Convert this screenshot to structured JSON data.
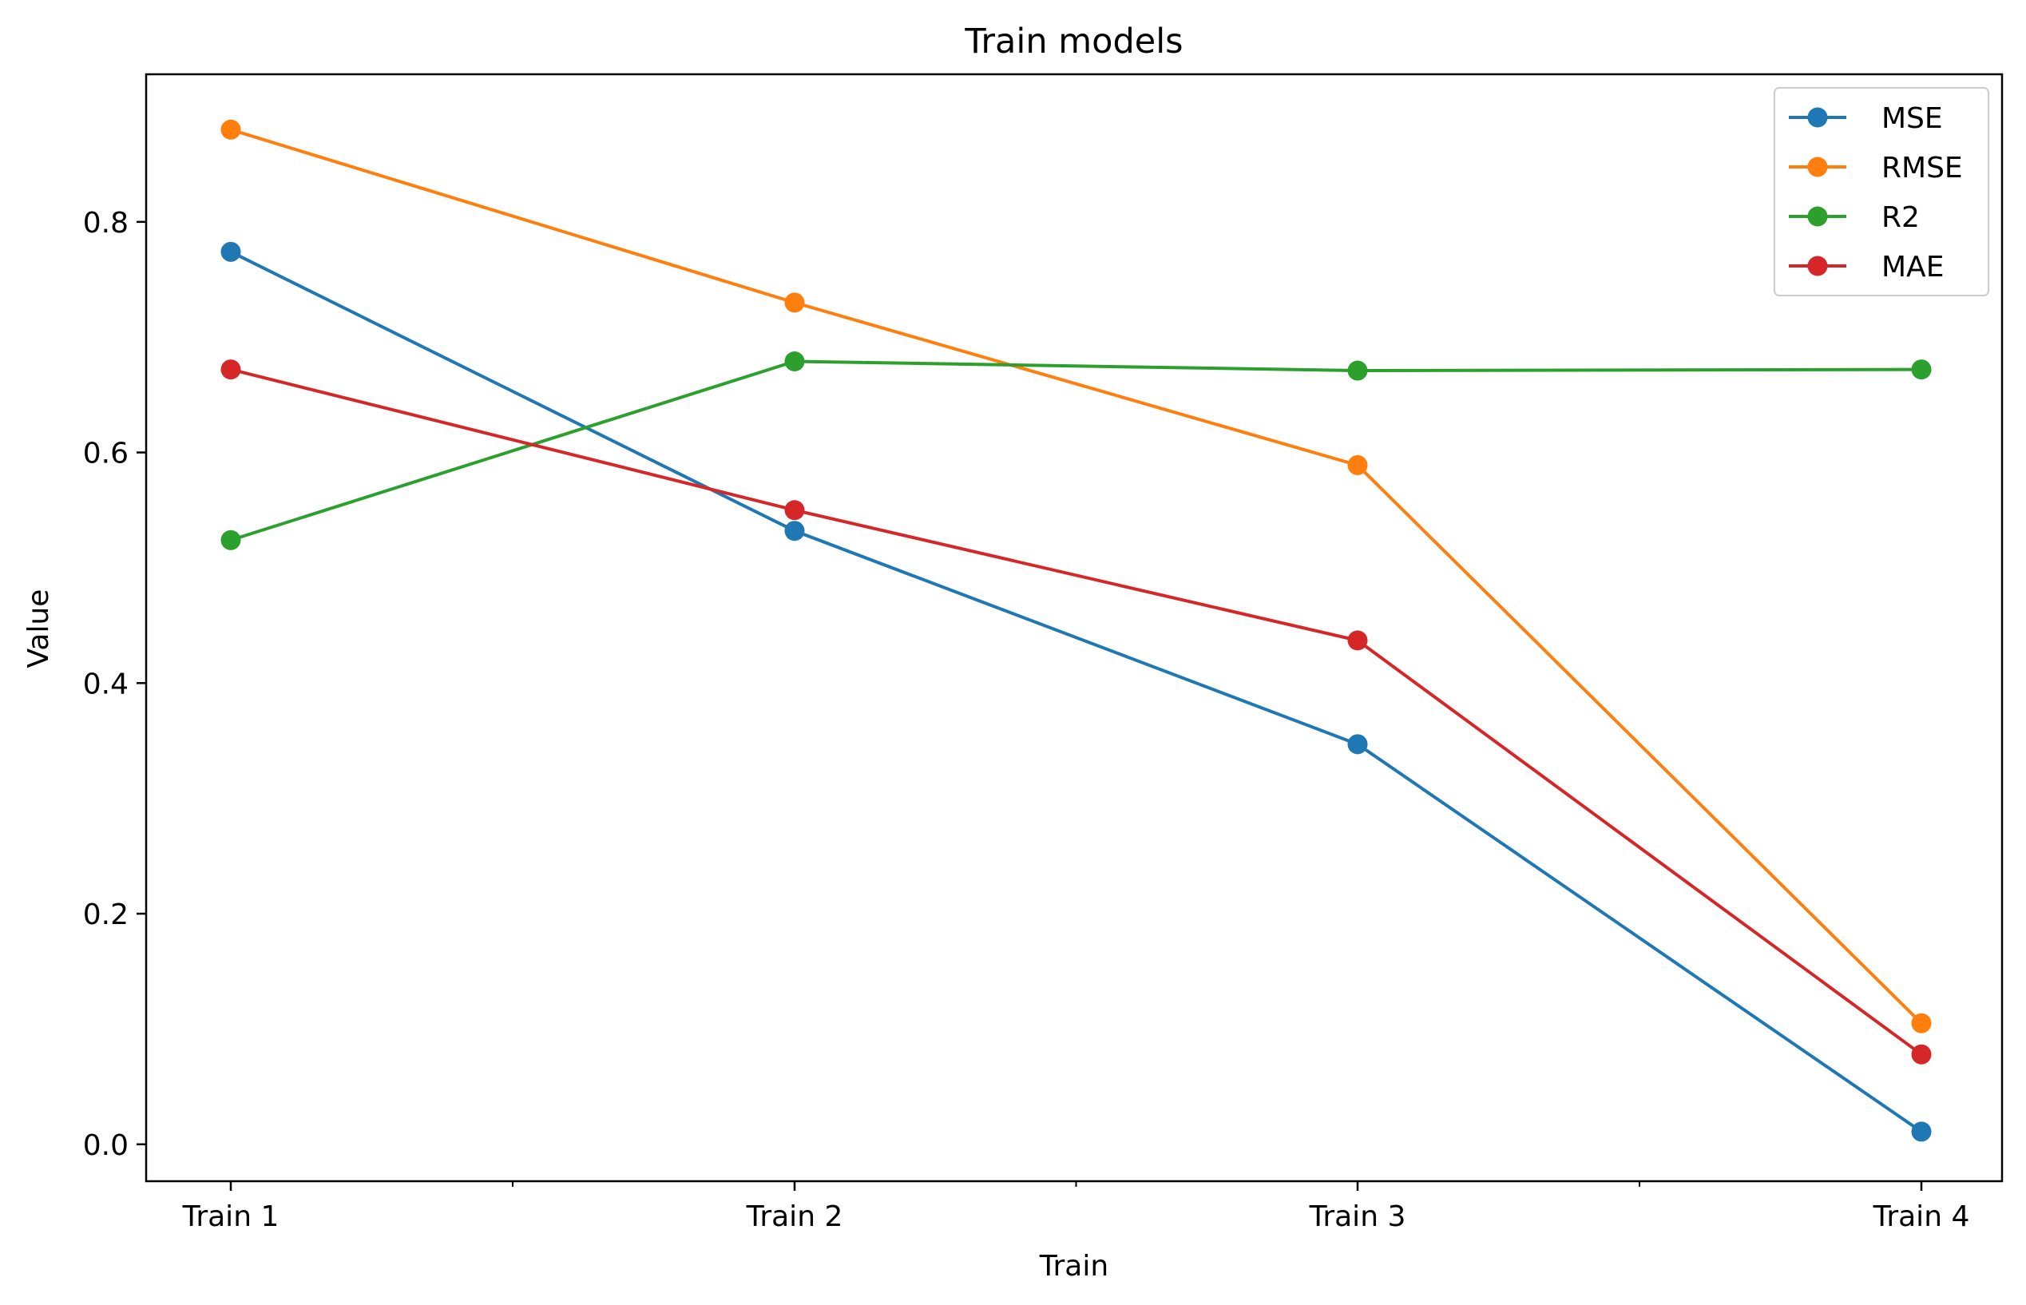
{
  "chart_data": {
    "type": "line",
    "title": "Train models",
    "xlabel": "Train",
    "ylabel": "Value",
    "categories": [
      "Train 1",
      "Train 2",
      "Train 3",
      "Train 4"
    ],
    "ylim": [
      -0.032,
      0.928
    ],
    "yticks": [
      0.0,
      0.2,
      0.4,
      0.6,
      0.8
    ],
    "ytick_labels": [
      "0.0",
      "0.2",
      "0.4",
      "0.6",
      "0.8"
    ],
    "minor_xticks_between_categories": true,
    "grid": false,
    "legend_position": "top-right",
    "series": [
      {
        "name": "MSE",
        "color": "#1f77b4",
        "values": [
          0.774,
          0.532,
          0.347,
          0.011
        ]
      },
      {
        "name": "RMSE",
        "color": "#ff7f0e",
        "values": [
          0.88,
          0.73,
          0.589,
          0.105
        ]
      },
      {
        "name": "R2",
        "color": "#2ca02c",
        "values": [
          0.524,
          0.679,
          0.671,
          0.672
        ]
      },
      {
        "name": "MAE",
        "color": "#d62728",
        "values": [
          0.672,
          0.55,
          0.437,
          0.078
        ]
      }
    ]
  }
}
